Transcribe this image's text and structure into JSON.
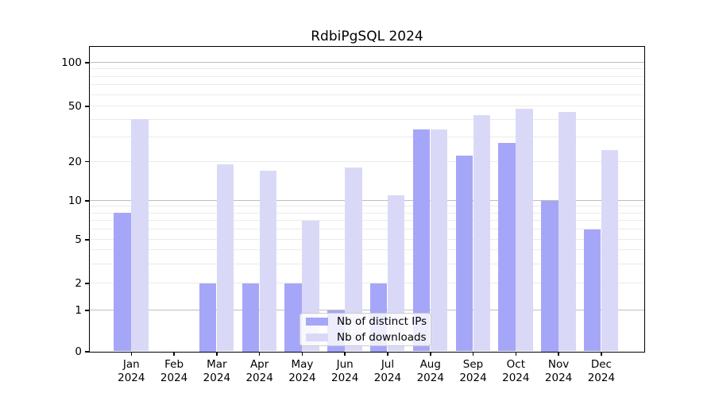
{
  "title": "RdbiPgSQL 2024",
  "chart_data": {
    "type": "bar",
    "title": "RdbiPgSQL 2024",
    "categories": [
      "Jan",
      "Feb",
      "Mar",
      "Apr",
      "May",
      "Jun",
      "Jul",
      "Aug",
      "Sep",
      "Oct",
      "Nov",
      "Dec"
    ],
    "year_label": "2024",
    "series": [
      {
        "name": "Nb of distinct IPs",
        "color": "#a6a6f8",
        "values": [
          8,
          0,
          2,
          2,
          2,
          1,
          2,
          34,
          22,
          27,
          10,
          6
        ]
      },
      {
        "name": "Nb of downloads",
        "color": "#d9d9f7",
        "values": [
          40,
          0,
          19,
          17,
          7,
          18,
          11,
          34,
          43,
          48,
          45,
          24
        ]
      }
    ],
    "y_scale": "log-like",
    "ylim": [
      0,
      130
    ],
    "y_ticks": [
      "0",
      "1",
      "2",
      "5",
      "10",
      "20",
      "50",
      "100"
    ],
    "y_major_gridlines": [
      1,
      10,
      100
    ],
    "y_minor_gridlines": [
      2,
      3,
      4,
      5,
      6,
      7,
      8,
      9,
      20,
      30,
      40,
      50,
      60,
      70,
      80,
      90
    ],
    "grid": true,
    "legend_position": "lower center"
  },
  "legend": {
    "items": [
      {
        "label": "Nb of distinct IPs",
        "swatch_color": "#a6a6f8"
      },
      {
        "label": "Nb of downloads",
        "swatch_color": "#d9d9f7"
      }
    ]
  }
}
